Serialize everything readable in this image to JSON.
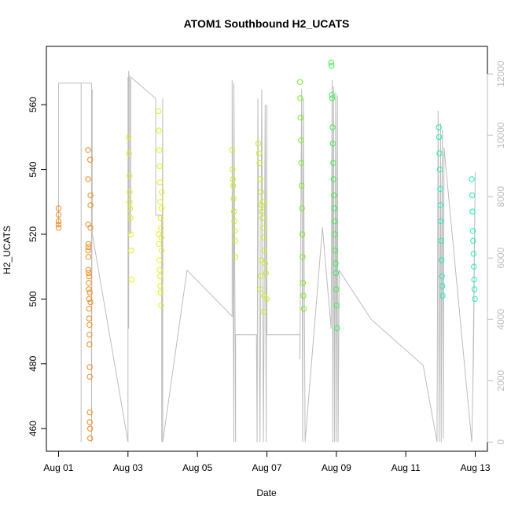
{
  "chart_data": {
    "type": "scatter",
    "title": "ATOM1 Southbound H2_UCATS",
    "xlabel": "Date",
    "ylabel": "H2_UCATS",
    "x_tick_labels": [
      "Aug 01",
      "Aug 03",
      "Aug 05",
      "Aug 07",
      "Aug 09",
      "Aug 11",
      "Aug 13"
    ],
    "x_ticks_days": [
      1,
      3,
      5,
      7,
      9,
      11,
      13
    ],
    "xlim_days": [
      0.65,
      13.35
    ],
    "ylim": [
      453,
      578
    ],
    "y_ticks": [
      460,
      480,
      500,
      520,
      540,
      560
    ],
    "y2_label": "",
    "y2_lim": [
      -300,
      12900
    ],
    "y2_ticks": [
      0,
      2000,
      4000,
      6000,
      8000,
      10000,
      12000
    ],
    "grid": false,
    "colors": {
      "flight_1": "#f08c1e",
      "flight_2": "#e6f01e",
      "flight_3": "#c8f01e",
      "flight_4": "#78f01e",
      "flight_5": "#3cf050",
      "flight_6": "#1ef0b4",
      "altitude": "#bdbdbd"
    },
    "series": [
      {
        "key": "flight_1",
        "x": [
          1.0,
          1.0,
          1.0,
          1.0,
          1.0,
          1.85,
          1.85,
          1.85,
          1.86,
          1.86,
          1.86,
          1.87,
          1.87,
          1.87,
          1.88,
          1.88,
          1.88,
          1.89,
          1.89,
          1.89,
          1.9,
          1.9,
          1.9,
          1.9,
          1.91,
          1.91,
          1.91,
          1.92,
          1.92,
          1.92,
          1.85,
          1.86,
          1.88,
          1.9,
          1.92
        ],
        "y": [
          528,
          526,
          524,
          523,
          522,
          546,
          537,
          523,
          517,
          516,
          509,
          508,
          505,
          503,
          500,
          497,
          494,
          492,
          489,
          486,
          479,
          476,
          465,
          462,
          460,
          457,
          543,
          532,
          529,
          522,
          515,
          513,
          507,
          502,
          499
        ]
      },
      {
        "key": "flight_2",
        "x": [
          3.02,
          3.03,
          3.04,
          3.05,
          3.05,
          3.06,
          3.07,
          3.08,
          3.09,
          3.1,
          3.88,
          3.89,
          3.9,
          3.91,
          3.92,
          3.93,
          3.94,
          3.95,
          3.96,
          3.97,
          3.9,
          3.91,
          3.92,
          3.93,
          3.94,
          3.95,
          3.96,
          3.97,
          3.88,
          3.89
        ],
        "y": [
          550,
          545,
          538,
          533,
          530,
          528,
          525,
          520,
          515,
          506,
          558,
          552,
          546,
          541,
          536,
          530,
          525,
          522,
          519,
          515,
          512,
          509,
          507,
          504,
          502,
          498,
          528,
          533,
          520,
          517
        ]
      },
      {
        "key": "flight_3",
        "x": [
          6.0,
          6.01,
          6.02,
          6.03,
          6.04,
          6.05,
          6.06,
          6.07,
          6.08,
          6.09,
          6.75,
          6.77,
          6.79,
          6.81,
          6.83,
          6.85,
          6.87,
          6.89,
          6.91,
          6.93,
          6.95,
          6.97,
          6.99,
          6.8,
          6.82,
          6.84,
          6.86,
          6.88,
          6.9,
          6.92
        ],
        "y": [
          546,
          540,
          537,
          535,
          531,
          527,
          524,
          521,
          518,
          513,
          548,
          545,
          542,
          537,
          533,
          529,
          525,
          522,
          519,
          515,
          511,
          508,
          500,
          503,
          507,
          512,
          527,
          530,
          496,
          501
        ]
      },
      {
        "key": "flight_4",
        "x": [
          7.95,
          7.96,
          7.97,
          7.98,
          7.99,
          8.0,
          8.01,
          8.02,
          8.03,
          8.04,
          8.05,
          8.06
        ],
        "y": [
          567,
          562,
          556,
          549,
          542,
          535,
          528,
          520,
          513,
          505,
          501,
          497
        ]
      },
      {
        "key": "flight_5",
        "x": [
          8.85,
          8.86,
          8.87,
          8.88,
          8.89,
          8.9,
          8.91,
          8.92,
          8.93,
          8.94,
          8.95,
          8.96,
          8.97,
          8.98,
          8.99,
          9.0,
          9.01,
          9.02
        ],
        "y": [
          573,
          572,
          563,
          562,
          553,
          548,
          542,
          537,
          532,
          528,
          524,
          520,
          515,
          511,
          508,
          503,
          498,
          491
        ]
      },
      {
        "key": "flight_6",
        "x": [
          11.95,
          11.96,
          11.97,
          11.98,
          11.99,
          12.0,
          12.01,
          12.02,
          12.03,
          12.04,
          12.05,
          12.06,
          12.9,
          12.91,
          12.92,
          12.93,
          12.94,
          12.95,
          12.96,
          12.97,
          12.98,
          12.99
        ],
        "y": [
          553,
          550,
          545,
          540,
          534,
          529,
          524,
          518,
          512,
          507,
          504,
          501,
          537,
          532,
          527,
          521,
          518,
          514,
          510,
          506,
          503,
          500
        ]
      }
    ],
    "altitude_trace": {
      "x": [
        1.0,
        1.0,
        1.35,
        1.65,
        1.65,
        1.65,
        1.95,
        1.95,
        1.97,
        1.97,
        3.0,
        3.0,
        3.02,
        3.02,
        3.05,
        3.05,
        3.08,
        3.08,
        3.8,
        3.8,
        3.97,
        3.97,
        4.0,
        4.0,
        4.7,
        6.0,
        6.0,
        6.05,
        6.05,
        6.1,
        6.1,
        6.7,
        6.72,
        6.74,
        6.8,
        6.85,
        6.9,
        6.95,
        6.98,
        7.0,
        7.0,
        7.95,
        7.95,
        8.0,
        8.03,
        8.05,
        8.1,
        8.6,
        8.85,
        8.88,
        8.9,
        8.92,
        8.95,
        8.98,
        9.0,
        9.03,
        9.05,
        9.08,
        10.0,
        11.5,
        11.9,
        11.93,
        11.96,
        12.0,
        12.02,
        12.05,
        12.08,
        12.1,
        12.9,
        12.95,
        13.0,
        12.93
      ],
      "y": [
        7000,
        11700,
        11700,
        11700,
        0,
        11700,
        11700,
        0,
        11500,
        6800,
        0,
        11900,
        3700,
        12100,
        11700,
        6800,
        6800,
        11900,
        11200,
        7400,
        7400,
        0,
        11200,
        0,
        5600,
        4100,
        11800,
        0,
        11700,
        0,
        3500,
        3500,
        0,
        11200,
        0,
        11500,
        0,
        11000,
        0,
        11000,
        3500,
        3500,
        2700,
        11500,
        0,
        11200,
        0,
        7000,
        3700,
        11800,
        0,
        11600,
        0,
        11400,
        0,
        11300,
        0,
        5600,
        4000,
        2500,
        0,
        10800,
        0,
        10400,
        0,
        10200,
        100,
        9600,
        0,
        2800,
        8800,
        1600
      ]
    }
  }
}
